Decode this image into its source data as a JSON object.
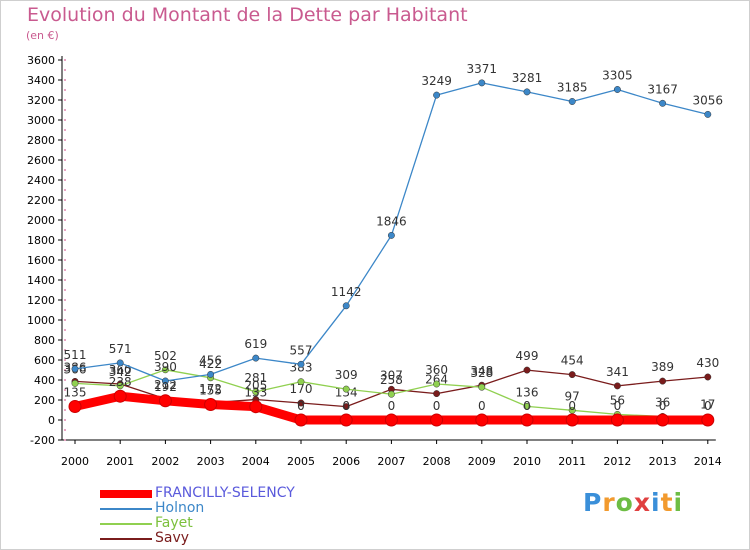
{
  "header": {
    "title": "Evolution du Montant de la Dette par Habitant",
    "unit": "(en €)"
  },
  "logo": {
    "text": "Proxiti",
    "colors": [
      "#3a8fd9",
      "#f29a2e",
      "#6dbd44",
      "#e04040",
      "#3a8fd9",
      "#f29a2e",
      "#6dbd44"
    ]
  },
  "colors": {
    "title": "#c95a8f",
    "axis": "#000000",
    "grid": "#b0b0b0",
    "value_label": "#333333"
  },
  "chart_data": {
    "type": "line",
    "title": "Evolution du Montant de la Dette par Habitant",
    "subtitle": "(en €)",
    "xlabel": "",
    "ylabel": "",
    "x": [
      "2000",
      "2001",
      "2002",
      "2003",
      "2004",
      "2005",
      "2006",
      "2007",
      "2008",
      "2009",
      "2010",
      "2011",
      "2012",
      "2013",
      "2014"
    ],
    "ylim": [
      -200,
      3600
    ],
    "yticks": [
      "-200",
      "0",
      "200",
      "400",
      "600",
      "800",
      "1000",
      "1200",
      "1400",
      "1600",
      "1800",
      "2000",
      "2200",
      "2400",
      "2600",
      "2800",
      "3000",
      "3200",
      "3400",
      "3600"
    ],
    "grid": false,
    "legend_position": "bottom-left",
    "series": [
      {
        "name": "FRANCILLY-SELENCY",
        "color": "#ff0000",
        "label_color": "#5a5adc",
        "values": [
          135,
          238,
          192,
          155,
          133,
          0,
          0,
          0,
          0,
          0,
          0,
          0,
          0,
          0,
          0
        ]
      },
      {
        "name": "Holnon",
        "color": "#3c87c8",
        "label_color": "#3c87c8",
        "values": [
          511,
          571,
          390,
          456,
          619,
          557,
          1142,
          1846,
          3249,
          3371,
          3281,
          3185,
          3305,
          3167,
          3056
        ]
      },
      {
        "name": "Fayet",
        "color": "#90d050",
        "label_color": "#7cc03c",
        "values": [
          366,
          342,
          502,
          422,
          281,
          383,
          309,
          258,
          360,
          328,
          136,
          97,
          56,
          36,
          17
        ]
      },
      {
        "name": "Savy",
        "color": "#7a1c1c",
        "label_color": "#7a1c1c",
        "values": [
          386,
          360,
          212,
          172,
          205,
          170,
          134,
          307,
          264,
          348,
          499,
          454,
          341,
          389,
          430
        ]
      }
    ]
  }
}
